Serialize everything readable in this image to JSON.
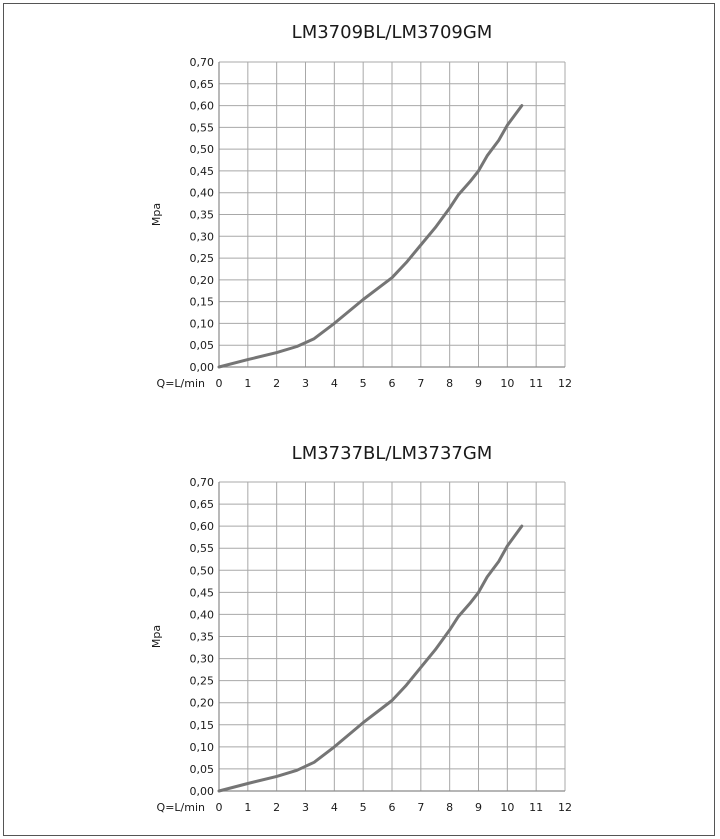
{
  "chart_data": [
    {
      "type": "line",
      "title": "LM3709BL/LM3709GM",
      "xlabel": "Q=L/min",
      "ylabel": "Mpa",
      "xlim": [
        0,
        12
      ],
      "ylim": [
        0,
        0.7
      ],
      "xticks": [
        "0",
        "1",
        "2",
        "3",
        "4",
        "5",
        "6",
        "7",
        "8",
        "9",
        "10",
        "11",
        "12"
      ],
      "yticks": [
        "0,00",
        "0,05",
        "0,10",
        "0,15",
        "0,20",
        "0,25",
        "0,30",
        "0,35",
        "0,40",
        "0,45",
        "0,50",
        "0,55",
        "0,60",
        "0,65",
        "0,70"
      ],
      "grid": true,
      "line_color": "#757575",
      "series": [
        {
          "x": [
            0,
            1,
            2,
            2.7,
            3.3,
            4,
            5,
            6,
            6.5,
            7,
            7.5,
            8,
            8.3,
            8.7,
            9,
            9.3,
            9.7,
            10,
            10.5
          ],
          "values": [
            0,
            0.017,
            0.033,
            0.047,
            0.065,
            0.1,
            0.155,
            0.205,
            0.24,
            0.28,
            0.32,
            0.365,
            0.395,
            0.425,
            0.45,
            0.485,
            0.52,
            0.555,
            0.6
          ]
        }
      ]
    },
    {
      "type": "line",
      "title": "LM3737BL/LM3737GM",
      "xlabel": "Q=L/min",
      "ylabel": "Mpa",
      "xlim": [
        0,
        12
      ],
      "ylim": [
        0,
        0.7
      ],
      "xticks": [
        "0",
        "1",
        "2",
        "3",
        "4",
        "5",
        "6",
        "7",
        "8",
        "9",
        "10",
        "11",
        "12"
      ],
      "yticks": [
        "0,00",
        "0,05",
        "0,10",
        "0,15",
        "0,20",
        "0,25",
        "0,30",
        "0,35",
        "0,40",
        "0,45",
        "0,50",
        "0,55",
        "0,60",
        "0,65",
        "0,70"
      ],
      "grid": true,
      "line_color": "#757575",
      "series": [
        {
          "x": [
            0,
            1,
            2,
            2.7,
            3.3,
            4,
            5,
            6,
            6.5,
            7,
            7.5,
            8,
            8.3,
            8.7,
            9,
            9.3,
            9.7,
            10,
            10.5
          ],
          "values": [
            0,
            0.017,
            0.033,
            0.047,
            0.065,
            0.1,
            0.155,
            0.205,
            0.24,
            0.28,
            0.32,
            0.365,
            0.395,
            0.425,
            0.45,
            0.485,
            0.52,
            0.555,
            0.6
          ]
        }
      ]
    }
  ]
}
